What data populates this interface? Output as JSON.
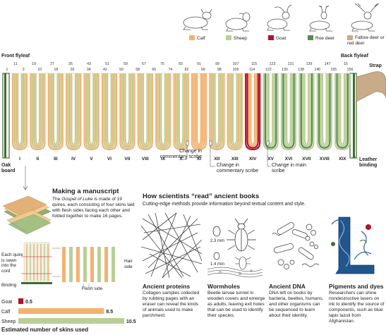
{
  "legend": {
    "items": [
      {
        "label": "Calf",
        "color": "#f3b270"
      },
      {
        "label": "Sheep",
        "color": "#b9cf96"
      },
      {
        "label": "Goat",
        "color": "#b0132b"
      },
      {
        "label": "Roe deer",
        "color": "#5b8a4e"
      },
      {
        "label": "Fallow deer or red deer",
        "color": "#c8ab87"
      }
    ]
  },
  "diagram": {
    "front_flyleaf": "Front flyleaf",
    "back_flyleaf": "Back flyleaf",
    "strap": "Strap",
    "oak_board": "Oak board",
    "leather_binding": "Leather binding",
    "top_numbers": [
      "1",
      "3",
      "10",
      "18",
      "26",
      "34",
      "42",
      "50",
      "58",
      "66",
      "74",
      "82",
      "90",
      "98",
      "106",
      "114",
      "122",
      "130",
      "138",
      "146",
      "155",
      "156"
    ],
    "top_numbers_upper": [
      "11",
      "19",
      "27",
      "35",
      "43",
      "51",
      "59",
      "67",
      "75",
      "83",
      "91",
      "99",
      "107",
      "115",
      "123",
      "131",
      "139",
      "147",
      "15"
    ],
    "quires": [
      "I",
      "II",
      "III",
      "IV",
      "V",
      "VI",
      "VII",
      "VIII",
      "IX",
      "X",
      "XI",
      "XII",
      "XIII",
      "XIV",
      "XV",
      "XVI",
      "XVII",
      "XVIII",
      "XIX"
    ],
    "annotations": [
      "Change in commentary scribe",
      "Change in commentary scribe",
      "Change in main scribe"
    ]
  },
  "making": {
    "title": "Making a manuscript",
    "body_prefix": "The ",
    "body_italic": "Gospel of Luke",
    "body_rest": " is made of 19 quires, each consisting of four skins laid with flesh sides facing each other and folded together to make 16 pages.",
    "quire_note": "Each quire is sewn into the cord",
    "binding": "Binding",
    "hair_side": "Hair side",
    "flesh_side": "Flesh side"
  },
  "skins_chart": {
    "title": "Estimated number of skins used"
  },
  "chart_data": {
    "type": "bar",
    "categories": [
      "Goat",
      "Calf",
      "Sheep"
    ],
    "values": [
      0.5,
      8.5,
      10.5
    ],
    "colors": [
      "#b0132b",
      "#f3b270",
      "#b9cf96"
    ],
    "title": "Estimated number of skins used",
    "xlim": [
      0,
      10.5
    ]
  },
  "how": {
    "title": "How scientists “read” ancient books",
    "subtitle": "Cutting-edge methods provide information beyond textual content and style.",
    "size1": "2.3 mm",
    "size2": "1.4 mm",
    "panels": [
      {
        "title": "Ancient proteins",
        "body": "Collagen samples collected by rubbing pages with an eraser can reveal the kinds of animals used to make parchment."
      },
      {
        "title": "Wormholes",
        "body": "Beetle larvae tunnel in wooden covers and emerge as adults, leaving exit holes that can be used to identify their species."
      },
      {
        "title": "Ancient DNA",
        "body": "DNA left on books by bacteria, beetles, humans, and other organisms can be sequenced to learn about their identity."
      },
      {
        "title": "Pigments and dyes",
        "body": "Researchers can shine nondestructive lasers on ink to identify the source of components, such as blue lapis lazuli from Afghanistan."
      }
    ]
  }
}
